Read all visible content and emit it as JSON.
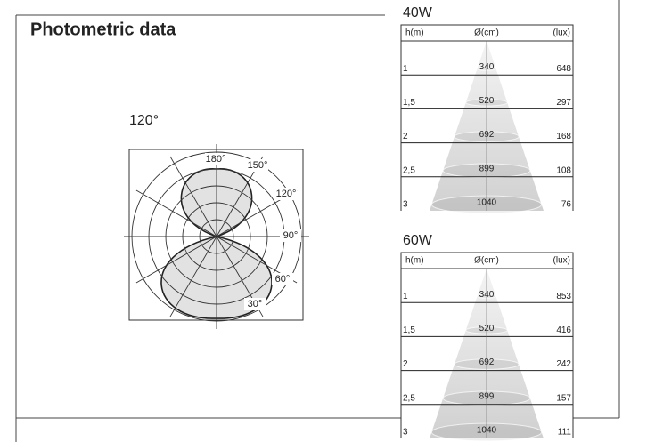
{
  "header": {
    "title": "Photometric data"
  },
  "polar": {
    "beam_label": "120°",
    "angle_labels": [
      "180°",
      "150°",
      "120°",
      "90°",
      "60°",
      "30°"
    ]
  },
  "tables": [
    {
      "title": "40W",
      "headers": [
        "h(m)",
        "Ø(cm)",
        "(lux)"
      ],
      "rows": [
        [
          "1",
          "340",
          "648"
        ],
        [
          "1,5",
          "520",
          "297"
        ],
        [
          "2",
          "692",
          "168"
        ],
        [
          "2,5",
          "899",
          "108"
        ],
        [
          "3",
          "1040",
          "76"
        ]
      ]
    },
    {
      "title": "60W",
      "headers": [
        "h(m)",
        "Ø(cm)",
        "(lux)"
      ],
      "rows": [
        [
          "1",
          "340",
          "853"
        ],
        [
          "1,5",
          "520",
          "416"
        ],
        [
          "2",
          "692",
          "242"
        ],
        [
          "2,5",
          "899",
          "157"
        ],
        [
          "3",
          "1040",
          "111"
        ]
      ]
    }
  ]
}
